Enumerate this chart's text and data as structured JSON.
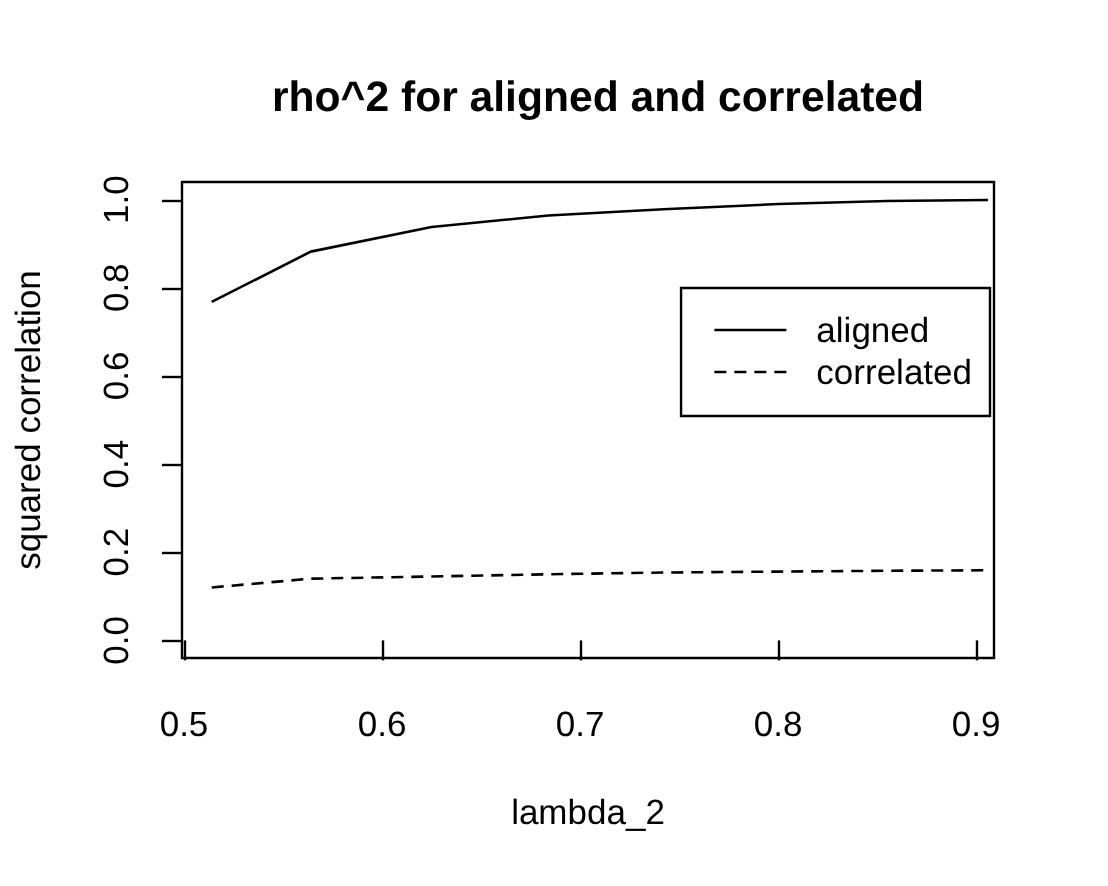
{
  "chart_data": {
    "type": "line",
    "title": "rho^2 for aligned and correlated",
    "xlabel": "lambda_2",
    "ylabel": "squared correlation",
    "x": [
      0.514,
      0.564,
      0.625,
      0.684,
      0.742,
      0.8,
      0.855,
      0.906
    ],
    "series": [
      {
        "name": "aligned",
        "color": "#000000",
        "line_style": "solid",
        "values": [
          0.768,
          0.882,
          0.938,
          0.964,
          0.978,
          0.99,
          0.997,
          0.999
        ]
      },
      {
        "name": "correlated",
        "color": "#000000",
        "line_style": "dashed",
        "values": [
          0.12,
          0.14,
          0.145,
          0.15,
          0.154,
          0.156,
          0.158,
          0.159
        ]
      }
    ],
    "xlim": [
      0.499,
      0.909
    ],
    "ylim": [
      -0.04,
      1.04
    ],
    "xticks": [
      0.5,
      0.6,
      0.7,
      0.8,
      0.9
    ],
    "yticks": [
      {
        "value": 0,
        "label": "0.0"
      },
      0.2,
      0.4,
      0.6,
      0.8,
      {
        "value": 1,
        "label": "1.0"
      }
    ],
    "legend": "top right"
  }
}
